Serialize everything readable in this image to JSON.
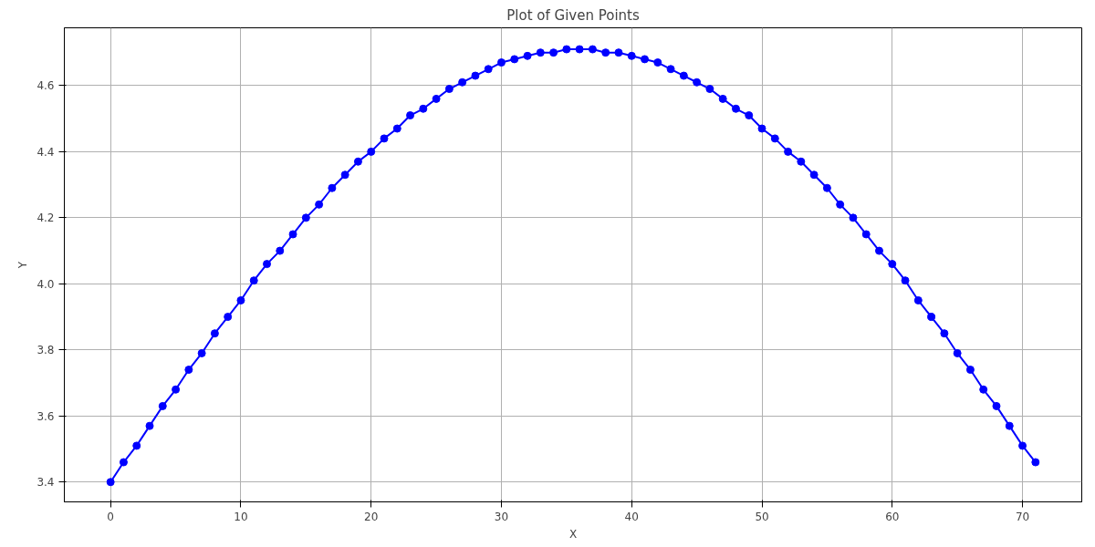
{
  "chart_data": {
    "type": "line",
    "title": "Plot of Given Points",
    "xlabel": "X",
    "ylabel": "Y",
    "x": [
      0,
      1,
      2,
      3,
      4,
      5,
      6,
      7,
      8,
      9,
      10,
      11,
      12,
      13,
      14,
      15,
      16,
      17,
      18,
      19,
      20,
      21,
      22,
      23,
      24,
      25,
      26,
      27,
      28,
      29,
      30,
      31,
      32,
      33,
      34,
      35,
      36,
      37,
      38,
      39,
      40,
      41,
      42,
      43,
      44,
      45,
      46,
      47,
      48,
      49,
      50,
      51,
      52,
      53,
      54,
      55,
      56,
      57,
      58,
      59,
      60,
      61,
      62,
      63,
      64,
      65,
      66,
      67,
      68,
      69,
      70,
      71
    ],
    "series": [
      {
        "color": "#0000ff",
        "values": [
          3.4,
          3.46,
          3.51,
          3.57,
          3.63,
          3.68,
          3.74,
          3.79,
          3.85,
          3.9,
          3.95,
          4.01,
          4.06,
          4.1,
          4.15,
          4.2,
          4.24,
          4.29,
          4.33,
          4.37,
          4.4,
          4.44,
          4.47,
          4.51,
          4.53,
          4.56,
          4.59,
          4.61,
          4.63,
          4.65,
          4.67,
          4.68,
          4.69,
          4.7,
          4.7,
          4.71,
          4.71,
          4.71,
          4.7,
          4.7,
          4.69,
          4.68,
          4.67,
          4.65,
          4.63,
          4.61,
          4.59,
          4.56,
          4.53,
          4.51,
          4.47,
          4.44,
          4.4,
          4.37,
          4.33,
          4.29,
          4.24,
          4.2,
          4.15,
          4.1,
          4.06,
          4.01,
          3.95,
          3.9,
          3.85,
          3.79,
          3.74,
          3.68,
          3.63,
          3.57,
          3.51,
          3.46
        ]
      }
    ],
    "xlim": [
      -3.55,
      74.55
    ],
    "ylim": [
      3.34,
      4.775
    ],
    "xticks": [
      0,
      10,
      20,
      30,
      40,
      50,
      60,
      70
    ],
    "yticks": [
      {
        "value": 3.4,
        "label": "3.4"
      },
      {
        "value": 3.6,
        "label": "3.6"
      },
      {
        "value": 3.8,
        "label": "3.8"
      },
      {
        "value": 4.0,
        "label": "4.0"
      },
      {
        "value": 4.2,
        "label": "4.2"
      },
      {
        "value": 4.4,
        "label": "4.4"
      },
      {
        "value": 4.6,
        "label": "4.6"
      }
    ],
    "grid": true,
    "marker": "circle",
    "line_style": "solid"
  }
}
